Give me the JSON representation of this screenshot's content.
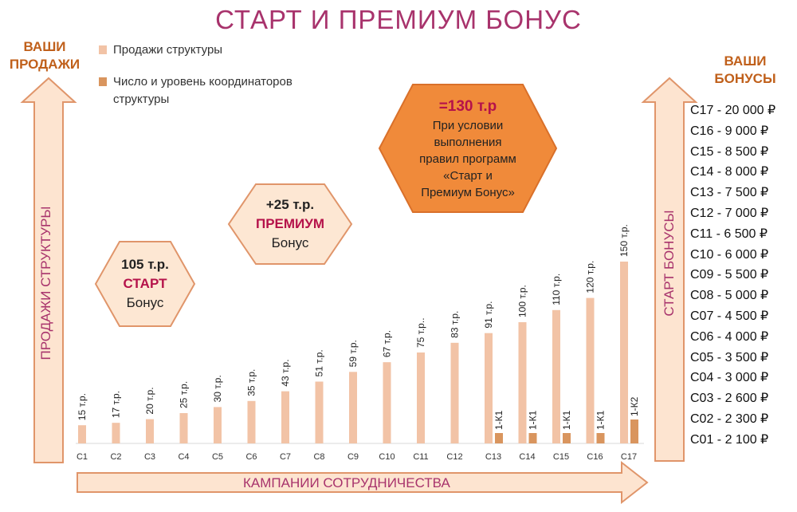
{
  "title": "СТАРТ И ПРЕМИУМ БОНУС",
  "left_header": [
    "ВАШИ",
    "ПРОДАЖИ"
  ],
  "right_header": [
    "ВАШИ",
    "БОНУСЫ"
  ],
  "legend": [
    {
      "label": "Продажи структуры",
      "color": "#f2c3a6"
    },
    {
      "label": "Число и уровень координаторов структуры",
      "color": "#d9955e"
    }
  ],
  "left_axis_label": "ПРОДАЖИ СТРУКТУРЫ",
  "right_axis_label": "СТАРТ БОНУСЫ",
  "bottom_axis_label": "КАМПАНИИ СОТРУДНИЧЕСТВА",
  "badges": {
    "start": {
      "line1": "105 т.р.",
      "line2": "СТАРТ",
      "line3": "Бонус"
    },
    "premium": {
      "line1": "+25 т.р.",
      "line2": "ПРЕМИУМ",
      "line3": "Бонус"
    },
    "total": {
      "line1": "=130 т.р",
      "line2": "При условии",
      "line3": "выполнения",
      "line4": "правил программ",
      "line5": "«Старт и",
      "line6": "Премиум Бонус»"
    }
  },
  "bonus_list": [
    "С17 - 20 000 ₽",
    "С16 - 9 000 ₽",
    "С15 - 8 500 ₽",
    "С14 - 8 000 ₽",
    "С13 - 7 500 ₽",
    "С12 - 7 000 ₽",
    "С11 - 6 500 ₽",
    "С10 - 6 000 ₽",
    "С09 - 5 500 ₽",
    "С08 - 5 000 ₽",
    "С07 - 4 500 ₽",
    "С06 - 4 000 ₽",
    "С05 - 3 500 ₽",
    "С04 - 3 000 ₽",
    "С03 - 2 600 ₽",
    "С02 - 2 300 ₽",
    "С01 - 2 100 ₽"
  ],
  "colors": {
    "accent": "#a8336c",
    "arrow_fill": "#fde4d0",
    "arrow_stroke": "#e0956a",
    "hex_light": "#fde7d3",
    "hex_dark": "#f08a3a",
    "header": "#c0601b",
    "badge_red": "#b5124a"
  },
  "chart_data": {
    "type": "bar",
    "categories": [
      "С1",
      "С2",
      "С3",
      "С4",
      "С5",
      "С6",
      "С7",
      "С8",
      "С9",
      "С10",
      "С11",
      "С12",
      "С13",
      "С14",
      "С15",
      "С16",
      "С17"
    ],
    "series": [
      {
        "name": "Продажи структуры",
        "values": [
          15,
          17,
          20,
          25,
          30,
          35,
          43,
          51,
          59,
          67,
          75,
          83,
          91,
          100,
          110,
          120,
          150
        ],
        "labels": [
          "15 т.р.",
          "17 т.р.",
          "20 т.р.",
          "25 т.р.",
          "30 т.р.",
          "35 т.р.",
          "43 т.р.",
          "51 т.р.",
          "59 т.р.",
          "67 т.р.",
          "75 т.р..",
          "83 т.р.",
          "91 т.р.",
          "100 т.р.",
          "110 т.р.",
          "120 т.р.",
          "150 т.р."
        ]
      },
      {
        "name": "Число и уровень координаторов структуры",
        "values": [
          0,
          0,
          0,
          0,
          0,
          0,
          0,
          0,
          0,
          0,
          0,
          0,
          1,
          1,
          1,
          1,
          2
        ],
        "labels": [
          "",
          "",
          "",
          "",
          "",
          "",
          "",
          "",
          "",
          "",
          "",
          "",
          "1-К1",
          "1-К1",
          "1-К1",
          "1-К1",
          "1-К2"
        ]
      }
    ],
    "ylim": [
      0,
      160
    ],
    "grid": false,
    "legend": "top-left"
  }
}
